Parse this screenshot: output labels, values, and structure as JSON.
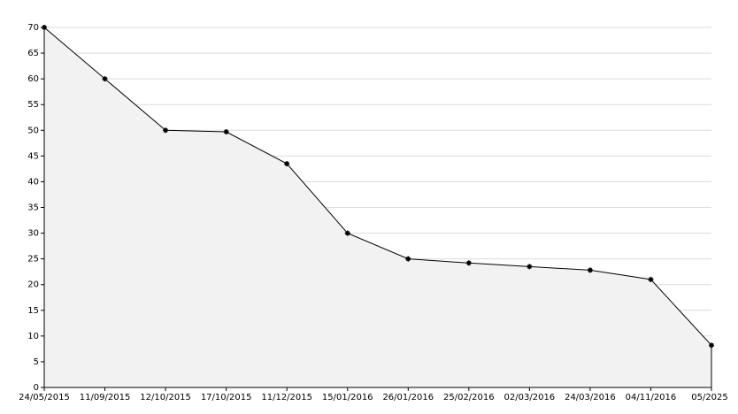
{
  "chart_data": {
    "type": "area",
    "categories": [
      "24/05/2015",
      "11/09/2015",
      "12/10/2015",
      "17/10/2015",
      "11/12/2015",
      "15/01/2016",
      "26/01/2016",
      "25/02/2016",
      "02/03/2016",
      "24/03/2016",
      "04/11/2016",
      "05/2025"
    ],
    "values": [
      70,
      60,
      50,
      49.7,
      43.5,
      30,
      25,
      24.2,
      23.5,
      22.8,
      21,
      8.2
    ],
    "color": "#000000",
    "fill_color": "#f2f2f2",
    "ylim": [
      0,
      70
    ],
    "yticks": [
      0,
      5,
      10,
      15,
      20,
      25,
      30,
      35,
      40,
      45,
      50,
      55,
      60,
      65,
      70
    ],
    "grid": true
  }
}
